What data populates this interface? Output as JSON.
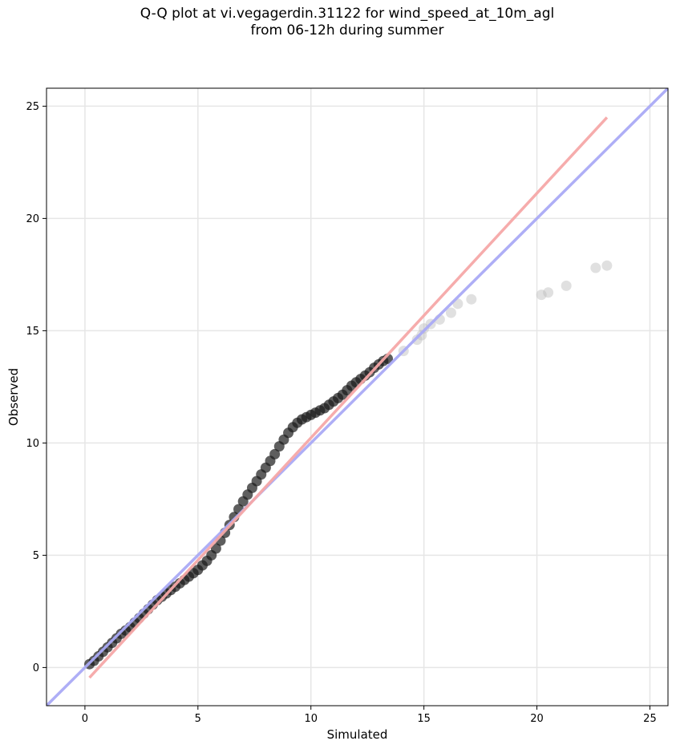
{
  "chart_data": {
    "type": "scatter",
    "title": "Q-Q plot at vi.vegagerdin.31122 for wind_speed_at_10m_agl\nfrom 06-12h during summer",
    "xlabel": "Simulated",
    "ylabel": "Observed",
    "xlim": [
      -1.7,
      25.8
    ],
    "ylim": [
      -1.7,
      25.8
    ],
    "xticks": [
      "0",
      "5",
      "10",
      "15",
      "20",
      "25"
    ],
    "yticks": [
      "0",
      "5",
      "10",
      "15",
      "20",
      "25"
    ],
    "grid": true,
    "colors": {
      "points": "#1a1a1a",
      "sparse_points": "#bbbbbb",
      "identity_line": "#aaaaf5",
      "fit_line": "#f5a8a8"
    },
    "series": [
      {
        "kind": "quantiles",
        "x": [
          0.2,
          0.4,
          0.6,
          0.8,
          1.0,
          1.2,
          1.4,
          1.6,
          1.8,
          2.0,
          2.2,
          2.4,
          2.6,
          2.8,
          3.0,
          3.2,
          3.4,
          3.6,
          3.8,
          4.0,
          4.2,
          4.4,
          4.6,
          4.8,
          5.0,
          5.2,
          5.4,
          5.6,
          5.8,
          6.0,
          6.2,
          6.4,
          6.6,
          6.8,
          7.0,
          7.2,
          7.4,
          7.6,
          7.8,
          8.0,
          8.2,
          8.4,
          8.6,
          8.8,
          9.0,
          9.2,
          9.4,
          9.6,
          9.8,
          10.0,
          10.2,
          10.4,
          10.6,
          10.8,
          11.0,
          11.2,
          11.4,
          11.6,
          11.8,
          12.0,
          12.2,
          12.4,
          12.6,
          12.8,
          13.0,
          13.2,
          13.4
        ],
        "y": [
          0.15,
          0.3,
          0.5,
          0.7,
          0.9,
          1.1,
          1.3,
          1.5,
          1.65,
          1.8,
          2.0,
          2.2,
          2.4,
          2.6,
          2.8,
          3.0,
          3.15,
          3.3,
          3.45,
          3.6,
          3.75,
          3.9,
          4.05,
          4.2,
          4.35,
          4.55,
          4.75,
          5.0,
          5.3,
          5.65,
          6.0,
          6.35,
          6.7,
          7.05,
          7.4,
          7.7,
          8.0,
          8.3,
          8.6,
          8.9,
          9.2,
          9.5,
          9.85,
          10.15,
          10.45,
          10.7,
          10.9,
          11.05,
          11.15,
          11.25,
          11.35,
          11.45,
          11.55,
          11.7,
          11.85,
          12.0,
          12.15,
          12.35,
          12.55,
          12.7,
          12.85,
          13.0,
          13.15,
          13.35,
          13.5,
          13.65,
          13.75
        ]
      },
      {
        "kind": "upper-tail-quantiles",
        "x": [
          14.1,
          14.7,
          14.9,
          15.0,
          15.3,
          15.7,
          16.2,
          16.5,
          17.1,
          20.2,
          20.5,
          21.3,
          22.6,
          23.1
        ],
        "y": [
          14.1,
          14.6,
          14.8,
          15.1,
          15.3,
          15.5,
          15.8,
          16.2,
          16.4,
          16.6,
          16.7,
          17.0,
          17.8,
          17.9
        ]
      }
    ],
    "lines": [
      {
        "kind": "identity",
        "x": [
          -1.7,
          25.8
        ],
        "y": [
          -1.7,
          25.8
        ]
      },
      {
        "kind": "fit",
        "x": [
          0.2,
          23.1
        ],
        "y": [
          -0.45,
          24.5
        ]
      }
    ]
  }
}
